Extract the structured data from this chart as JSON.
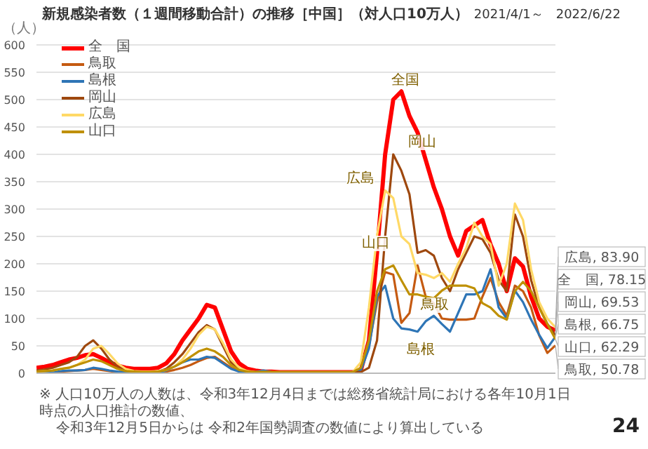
{
  "chart_data": {
    "type": "line",
    "title": "新規感染者数（１週間移動合計）の推移［中国］（対人口10万人）",
    "subtitle": "2021/4/1～　2022/6/22",
    "ylabel": "（人）",
    "categories": [
      null,
      null,
      null,
      null,
      null,
      null,
      null,
      null,
      null,
      null,
      null,
      null,
      null,
      null,
      null,
      null,
      null,
      null,
      null,
      null,
      null,
      null,
      null,
      null,
      null,
      null,
      null,
      null,
      null,
      null,
      null,
      null,
      null,
      null,
      null,
      null,
      null,
      null,
      null,
      null,
      null,
      null,
      null,
      null,
      null,
      null,
      null,
      null,
      null,
      null,
      null,
      null,
      null,
      null,
      null,
      null,
      null,
      null,
      null,
      null,
      null,
      null,
      null,
      null,
      null
    ],
    "ylim": [
      0,
      600
    ],
    "yticks": [
      0,
      50,
      100,
      150,
      200,
      250,
      300,
      350,
      400,
      450,
      500,
      550,
      600
    ],
    "grid": "y",
    "legend": "top left",
    "tick_labels": "y",
    "marker": "none",
    "line_style": "solid",
    "series": [
      {
        "name": "全　国",
        "color": "#ff0000",
        "values": [
          10,
          12,
          15,
          20,
          25,
          28,
          33,
          35,
          28,
          20,
          14,
          10,
          8,
          8,
          8,
          10,
          18,
          35,
          60,
          80,
          100,
          125,
          120,
          80,
          40,
          18,
          8,
          5,
          3,
          3,
          2,
          2,
          2,
          2,
          2,
          2,
          2,
          2,
          2,
          2,
          5,
          60,
          220,
          400,
          500,
          515,
          470,
          440,
          390,
          340,
          300,
          250,
          215,
          260,
          270,
          280,
          235,
          200,
          150,
          210,
          195,
          140,
          100,
          85,
          78.15
        ],
        "value_labels": [
          null,
          null,
          null,
          null,
          null,
          null,
          null,
          null,
          null,
          null,
          null,
          null,
          null,
          null,
          null,
          null,
          null,
          null,
          null,
          null,
          null,
          null,
          null,
          null,
          null,
          null,
          null,
          null,
          null,
          null,
          null,
          null,
          null,
          null,
          null,
          null,
          null,
          null,
          null,
          null,
          null,
          null,
          null,
          null,
          null,
          null,
          null,
          null,
          null,
          null,
          null,
          null,
          null,
          null,
          null,
          null,
          null,
          null,
          null,
          null,
          null,
          null,
          null,
          null,
          "全　国, 78.15"
        ]
      },
      {
        "name": "鳥取",
        "color": "#c55a11",
        "values": [
          1,
          2,
          2,
          3,
          4,
          5,
          6,
          8,
          6,
          4,
          2,
          1,
          1,
          1,
          1,
          1,
          3,
          6,
          10,
          15,
          22,
          28,
          30,
          20,
          10,
          4,
          2,
          1,
          1,
          1,
          1,
          1,
          1,
          1,
          1,
          1,
          1,
          1,
          1,
          1,
          5,
          50,
          130,
          185,
          180,
          92,
          110,
          197,
          140,
          128,
          100,
          98,
          98,
          98,
          100,
          140,
          174,
          130,
          105,
          160,
          150,
          120,
          69,
          37,
          50.78
        ],
        "value_labels": [
          null,
          null,
          null,
          null,
          null,
          null,
          null,
          null,
          null,
          null,
          null,
          null,
          null,
          null,
          null,
          null,
          null,
          null,
          null,
          null,
          null,
          null,
          null,
          null,
          null,
          null,
          null,
          null,
          null,
          null,
          null,
          null,
          null,
          null,
          null,
          null,
          null,
          null,
          null,
          null,
          null,
          null,
          null,
          null,
          null,
          null,
          null,
          null,
          null,
          null,
          null,
          null,
          null,
          null,
          null,
          null,
          null,
          null,
          null,
          null,
          null,
          null,
          null,
          null,
          "鳥取, 50.78"
        ]
      },
      {
        "name": "島根",
        "color": "#2e75b6",
        "values": [
          1,
          2,
          3,
          4,
          5,
          5,
          6,
          10,
          8,
          5,
          3,
          2,
          1,
          1,
          1,
          1,
          5,
          12,
          20,
          25,
          25,
          30,
          28,
          18,
          8,
          3,
          2,
          2,
          5,
          2,
          1,
          1,
          1,
          1,
          1,
          1,
          1,
          1,
          1,
          1,
          5,
          45,
          140,
          160,
          100,
          82,
          80,
          76,
          95,
          105,
          90,
          76,
          110,
          144,
          144,
          150,
          190,
          120,
          100,
          151,
          130,
          98,
          70,
          46,
          66.75
        ],
        "value_labels": [
          null,
          null,
          null,
          null,
          null,
          null,
          null,
          null,
          null,
          null,
          null,
          null,
          null,
          null,
          null,
          null,
          null,
          null,
          null,
          null,
          null,
          null,
          null,
          null,
          null,
          null,
          null,
          null,
          null,
          null,
          null,
          null,
          null,
          null,
          null,
          null,
          null,
          null,
          null,
          null,
          null,
          null,
          null,
          null,
          null,
          null,
          null,
          null,
          null,
          null,
          null,
          null,
          null,
          null,
          null,
          null,
          null,
          null,
          null,
          null,
          null,
          null,
          null,
          null,
          "島根, 66.75"
        ]
      },
      {
        "name": "岡山",
        "color": "#9e480e",
        "values": [
          5,
          7,
          10,
          15,
          20,
          30,
          50,
          60,
          45,
          25,
          12,
          6,
          3,
          2,
          2,
          3,
          8,
          20,
          35,
          55,
          75,
          88,
          80,
          50,
          20,
          8,
          3,
          2,
          2,
          2,
          2,
          2,
          2,
          2,
          2,
          2,
          2,
          2,
          2,
          2,
          2,
          10,
          60,
          250,
          400,
          370,
          327,
          220,
          225,
          215,
          174,
          150,
          190,
          220,
          250,
          245,
          220,
          170,
          150,
          290,
          250,
          170,
          120,
          90,
          69.53
        ],
        "value_labels": [
          null,
          null,
          null,
          null,
          null,
          null,
          null,
          null,
          null,
          null,
          null,
          null,
          null,
          null,
          null,
          null,
          null,
          null,
          null,
          null,
          null,
          null,
          null,
          null,
          null,
          null,
          null,
          null,
          null,
          null,
          null,
          null,
          null,
          null,
          null,
          null,
          null,
          null,
          null,
          null,
          null,
          null,
          null,
          null,
          null,
          null,
          null,
          null,
          null,
          null,
          null,
          null,
          null,
          null,
          null,
          null,
          null,
          null,
          null,
          null,
          null,
          null,
          null,
          null,
          "岡山, 69.53"
        ]
      },
      {
        "name": "広島",
        "color": "#ffd966",
        "values": [
          3,
          4,
          5,
          8,
          10,
          15,
          25,
          45,
          50,
          35,
          18,
          8,
          4,
          3,
          3,
          4,
          6,
          12,
          25,
          45,
          70,
          85,
          80,
          55,
          25,
          10,
          4,
          2,
          2,
          2,
          2,
          2,
          2,
          2,
          2,
          2,
          2,
          2,
          2,
          2,
          20,
          120,
          252,
          334,
          320,
          250,
          236,
          183,
          180,
          174,
          183,
          167,
          200,
          229,
          275,
          250,
          236,
          160,
          200,
          310,
          280,
          190,
          130,
          100,
          83.9
        ],
        "value_labels": [
          null,
          null,
          null,
          null,
          null,
          null,
          null,
          null,
          null,
          null,
          null,
          null,
          null,
          null,
          null,
          null,
          null,
          null,
          null,
          null,
          null,
          null,
          null,
          null,
          null,
          null,
          null,
          null,
          null,
          null,
          null,
          null,
          null,
          null,
          null,
          null,
          null,
          null,
          null,
          null,
          null,
          null,
          null,
          null,
          null,
          null,
          null,
          null,
          null,
          null,
          null,
          null,
          null,
          null,
          null,
          null,
          null,
          null,
          null,
          null,
          null,
          null,
          null,
          null,
          "広島, 83.90"
        ]
      },
      {
        "name": "山口",
        "color": "#bf9000",
        "values": [
          3,
          4,
          5,
          8,
          10,
          15,
          20,
          25,
          22,
          15,
          8,
          4,
          3,
          2,
          2,
          3,
          6,
          12,
          20,
          30,
          40,
          45,
          40,
          30,
          15,
          6,
          3,
          2,
          2,
          2,
          2,
          2,
          2,
          2,
          2,
          2,
          2,
          2,
          2,
          2,
          10,
          60,
          150,
          190,
          197,
          170,
          144,
          144,
          140,
          137,
          151,
          160,
          160,
          160,
          155,
          128,
          120,
          105,
          98,
          150,
          167,
          150,
          120,
          90,
          62.29
        ],
        "value_labels": [
          null,
          null,
          null,
          null,
          null,
          null,
          null,
          null,
          null,
          null,
          null,
          null,
          null,
          null,
          null,
          null,
          null,
          null,
          null,
          null,
          null,
          null,
          null,
          null,
          null,
          null,
          null,
          null,
          null,
          null,
          null,
          null,
          null,
          null,
          null,
          null,
          null,
          null,
          null,
          null,
          null,
          null,
          null,
          null,
          null,
          null,
          null,
          null,
          null,
          null,
          null,
          null,
          null,
          null,
          null,
          null,
          null,
          null,
          null,
          null,
          null,
          null,
          null,
          null,
          "山口, 62.29"
        ]
      }
    ],
    "annotations": [
      "全国",
      "岡山",
      "広島",
      "山口",
      "鳥取",
      "島根",
      "※ 人口10万人の人数は、令和3年12月4日までは総務省統計局における各年10月1日時点の人口推計の数値、",
      "令和3年12月5日からは 令和2年国勢調査の数値により算出している",
      "24"
    ]
  }
}
